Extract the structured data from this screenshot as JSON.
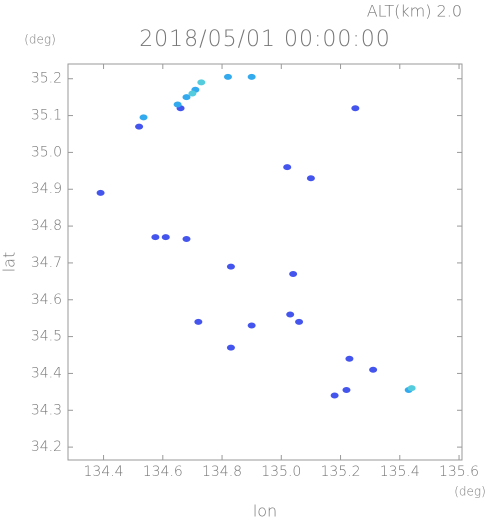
{
  "chart_data": {
    "type": "scatter",
    "title": "2018/05/01 00:00:00",
    "subtitle": "ALT(km) 2.0",
    "x_label": "lon",
    "y_label": "lat",
    "x_unit": "(deg)",
    "y_unit": "(deg)",
    "xlim": [
      134.28,
      135.61
    ],
    "ylim": [
      34.165,
      35.24
    ],
    "xticks": [
      134.4,
      134.6,
      134.8,
      {
        "value": 135,
        "label": "135.0"
      },
      135.2,
      135.4,
      135.6
    ],
    "yticks": [
      34.2,
      34.3,
      34.4,
      34.5,
      34.6,
      34.7,
      34.8,
      34.9,
      {
        "value": 35,
        "label": "35.0"
      },
      35.1,
      35.2
    ],
    "series": [
      {
        "color": "#4455ee",
        "x": [
          134.52,
          134.575,
          134.61,
          134.68,
          134.39,
          134.83,
          135.04,
          134.72,
          134.9,
          134.83,
          135.03,
          135.06,
          135.23,
          135.31,
          135.22,
          135.18,
          135.25,
          135.02,
          135.1,
          134.66
        ],
        "values": [
          35.07,
          34.77,
          34.77,
          34.765,
          34.89,
          34.69,
          34.67,
          34.54,
          34.53,
          34.47,
          34.56,
          34.54,
          34.44,
          34.41,
          34.355,
          34.34,
          35.12,
          34.96,
          34.93,
          35.12
        ]
      },
      {
        "color": "#33aaee",
        "x": [
          134.535,
          134.68,
          134.71,
          134.65,
          134.82,
          135.43,
          134.9
        ],
        "values": [
          35.095,
          35.15,
          35.17,
          35.13,
          35.205,
          34.355,
          35.205
        ]
      },
      {
        "color": "#55ccdd",
        "x": [
          134.73,
          134.7,
          135.44
        ],
        "values": [
          35.19,
          35.16,
          34.36
        ]
      }
    ]
  }
}
